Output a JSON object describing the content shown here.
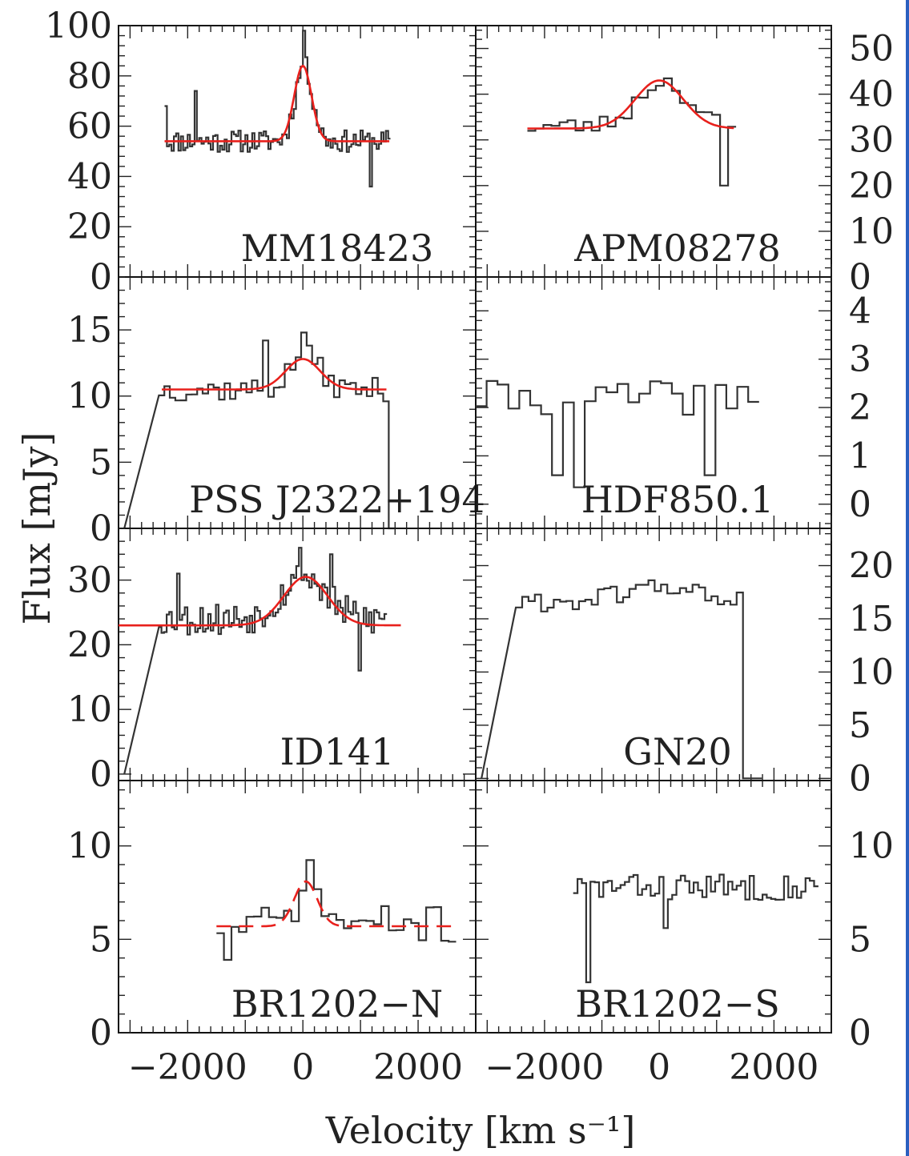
{
  "chart_data": {
    "type": "line",
    "xlabel": "Velocity [km s⁻¹]",
    "ylabel": "Flux [mJy]",
    "xlim": [
      -3200,
      3000
    ],
    "x_ticks": [
      -2000,
      0,
      2000
    ],
    "x_tick_labels": [
      "−2000",
      "0",
      "2000"
    ],
    "colors": {
      "spectrum": "#333333",
      "fit": "#e8201c"
    },
    "panels": [
      {
        "label": "MM18423",
        "ylim": [
          0,
          100
        ],
        "yticks": [
          0,
          20,
          40,
          60,
          80,
          100
        ],
        "axis_side": "left",
        "spectrum": {
          "x0": -2400,
          "dx": 40,
          "noise": 4.5,
          "seed": 11,
          "baseline": 54,
          "features": [
            {
              "center": 0,
              "amp": 30,
              "sigma": 150
            }
          ],
          "spikes": [
            {
              "x": -2400,
              "y": 68
            },
            {
              "x": -1880,
              "y": 74
            },
            {
              "x": 0,
              "y": 98
            },
            {
              "x": 1150,
              "y": 36
            }
          ],
          "x_end": 1500
        },
        "fit": {
          "baseline": 54,
          "center": 0,
          "amp": 30,
          "sigma": 150,
          "x_range": [
            -2400,
            1500
          ],
          "dashed": false
        }
      },
      {
        "label": "APM08278",
        "ylim": [
          0,
          55
        ],
        "yticks": [
          0,
          10,
          20,
          30,
          40,
          50
        ],
        "axis_side": "right",
        "spectrum": {
          "x0": -2300,
          "dx": 140,
          "noise": 2.0,
          "seed": 23,
          "baseline": 33,
          "features": [
            {
              "center": 0,
              "amp": 10,
              "sigma": 420
            }
          ],
          "spikes": [
            {
              "x": 1070,
              "y": 20
            }
          ],
          "x_end": 1300
        },
        "fit": {
          "baseline": 32.5,
          "center": 0,
          "amp": 10.5,
          "sigma": 420,
          "x_range": [
            -2300,
            1300
          ],
          "dashed": false
        }
      },
      {
        "label": "PSS J2322+194",
        "ylim": [
          0,
          19
        ],
        "yticks": [
          0,
          5,
          10,
          15
        ],
        "axis_side": "left",
        "spectrum": {
          "x0": -2500,
          "dx": 95,
          "noise": 0.9,
          "seed": 37,
          "baseline": 10.5,
          "features": [
            {
              "center": 0,
              "amp": 2.5,
              "sigma": 260
            }
          ],
          "spikes": [
            {
              "x": -700,
              "y": 14.2
            },
            {
              "x": 0,
              "y": 14.8
            }
          ],
          "edges": [
            -2550,
            1400
          ],
          "x_end": 1550
        },
        "fit": {
          "baseline": 10.5,
          "center": 0,
          "amp": 2.3,
          "sigma": 300,
          "x_range": [
            -2450,
            1450
          ],
          "dashed": false,
          "dash_center": [
            -450,
            450
          ]
        }
      },
      {
        "label": "HDF850.1",
        "ylim": [
          -0.5,
          4.7
        ],
        "yticks": [
          0,
          1,
          2,
          3,
          4
        ],
        "axis_side": "right",
        "spectrum": {
          "x0": -3200,
          "dx": 190,
          "noise": 0.35,
          "seed": 41,
          "baseline": 2.2,
          "features": [],
          "spikes": [
            {
              "x": -1800,
              "y": 0.6
            },
            {
              "x": -1500,
              "y": 0.35
            },
            {
              "x": 800,
              "y": 0.6
            }
          ],
          "x_end": 1700
        },
        "fit": null
      },
      {
        "label": "ID141",
        "ylim": [
          -1,
          38
        ],
        "yticks": [
          0,
          10,
          20,
          30
        ],
        "axis_side": "left",
        "spectrum": {
          "x0": -2500,
          "dx": 45,
          "noise": 2.6,
          "seed": 53,
          "baseline": 24,
          "features": [
            {
              "center": 0,
              "amp": 6.5,
              "sigma": 380
            }
          ],
          "spikes": [
            {
              "x": -2200,
              "y": 31
            },
            {
              "x": -50,
              "y": 35
            },
            {
              "x": 450,
              "y": 34
            },
            {
              "x": 950,
              "y": 16
            }
          ],
          "edges": [
            -2500,
            1450
          ],
          "x_end": 1450
        },
        "fit": {
          "baseline": 23,
          "center": 50,
          "amp": 7.5,
          "sigma": 380,
          "x_range": [
            -3200,
            1700
          ],
          "dashed": false
        }
      },
      {
        "label": "GN20",
        "ylim": [
          -0.2,
          23.5
        ],
        "yticks": [
          0,
          5,
          10,
          15,
          20
        ],
        "axis_side": "right",
        "spectrum": {
          "x0": -2500,
          "dx": 110,
          "noise": 0.9,
          "seed": 61,
          "baseline": 16.5,
          "features": [
            {
              "center": 0,
              "amp": 1.5,
              "sigma": 700
            }
          ],
          "spikes": [],
          "edges": [
            -2500,
            1350
          ],
          "x_end": 1700
        },
        "fit": null
      },
      {
        "label": "BR1202−N",
        "ylim": [
          0,
          13.5
        ],
        "yticks": [
          0,
          5,
          10
        ],
        "axis_side": "left",
        "spectrum": {
          "x0": -1500,
          "dx": 130,
          "noise": 1.0,
          "seed": 71,
          "baseline": 5.8,
          "features": [
            {
              "center": 50,
              "amp": 2.5,
              "sigma": 200
            }
          ],
          "spikes": [
            {
              "x": -1400,
              "y": 3.9
            }
          ],
          "x_end": 2600
        },
        "fit": {
          "baseline": 5.7,
          "center": 50,
          "amp": 2.4,
          "sigma": 200,
          "x_range": [
            -1500,
            2650
          ],
          "dashed": true
        }
      },
      {
        "label": "BR1202−S",
        "ylim": [
          0,
          13.5
        ],
        "yticks": [
          0,
          5,
          10
        ],
        "axis_side": "right",
        "spectrum": {
          "x0": -1500,
          "dx": 75,
          "noise": 0.7,
          "seed": 83,
          "baseline": 7.8,
          "features": [],
          "spikes": [
            {
              "x": -1300,
              "y": 2.7
            },
            {
              "x": 100,
              "y": 5.6
            }
          ],
          "x_end": 2700
        },
        "fit": null
      }
    ]
  }
}
